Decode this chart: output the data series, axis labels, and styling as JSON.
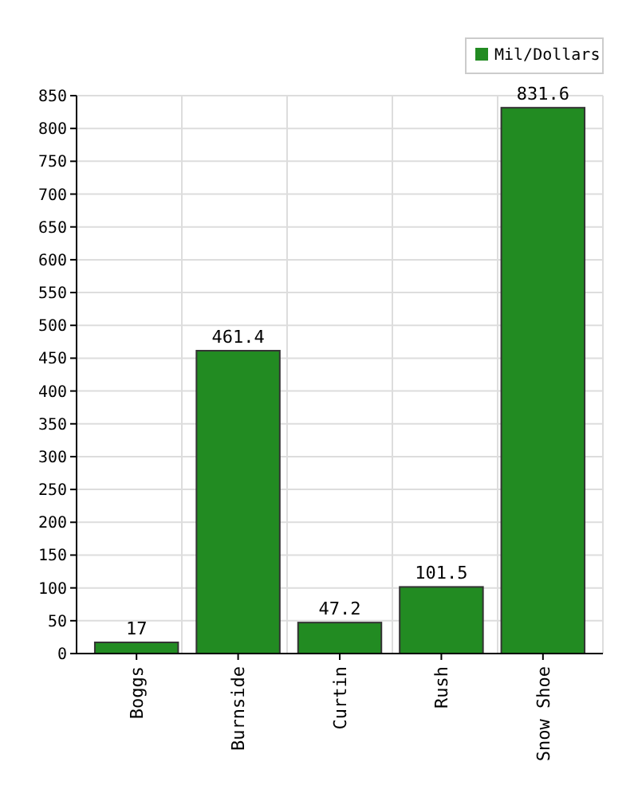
{
  "chart_data": {
    "type": "bar",
    "categories": [
      "Boggs",
      "Burnside",
      "Curtin",
      "Rush",
      "Snow Shoe"
    ],
    "series": [
      {
        "name": "Mil/Dollars",
        "color": "#228b22",
        "values": [
          17,
          461.4,
          47.2,
          101.5,
          831.6
        ]
      }
    ],
    "ylim": [
      0,
      850
    ],
    "yticks": [
      0,
      50,
      100,
      150,
      200,
      250,
      300,
      350,
      400,
      450,
      500,
      550,
      600,
      650,
      700,
      750,
      800,
      850
    ],
    "grid": true,
    "legend": "top right",
    "data_labels": true
  }
}
